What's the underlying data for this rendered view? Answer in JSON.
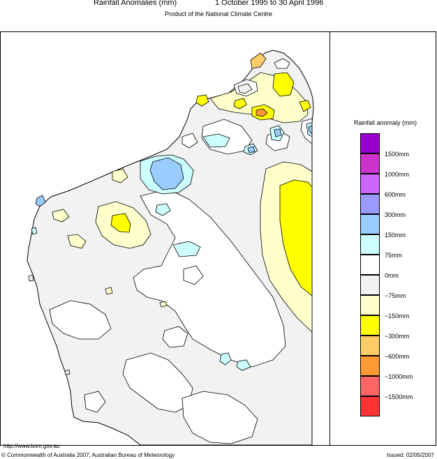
{
  "header": {
    "title": "Rainfall Anomalies (mm)",
    "period": "1 October 1995 to 30 April 1996",
    "subtitle": "Product of the National Climate Centre"
  },
  "legend": {
    "title": "Rainfall anomaly (mm)",
    "classes": [
      {
        "color": "#9900cc",
        "label": ""
      },
      {
        "color": "#cc33cc",
        "label": "1500mm"
      },
      {
        "color": "#cc66ff",
        "label": "1000mm"
      },
      {
        "color": "#9999ff",
        "label": "600mm"
      },
      {
        "color": "#99ccff",
        "label": "300mm"
      },
      {
        "color": "#ccffff",
        "label": "150mm"
      },
      {
        "color": "#ffffff",
        "label": "75mm"
      },
      {
        "color": "#f2f2f2",
        "label": "0mm"
      },
      {
        "color": "#ffffcc",
        "label": "−75mm"
      },
      {
        "color": "#ffff00",
        "label": "−150mm"
      },
      {
        "color": "#ffcc66",
        "label": "−300mm"
      },
      {
        "color": "#ff9933",
        "label": "−600mm"
      },
      {
        "color": "#ff6666",
        "label": "−1000mm"
      },
      {
        "color": "#ff3333",
        "label": "−1500mm"
      }
    ]
  },
  "footer": {
    "url": "http://www.bom.gov.au",
    "copyright": "© Commonwealth of Australia 2007, Australian Bureau of Meteorology",
    "issued": "Issued: 02/05/2007"
  }
}
